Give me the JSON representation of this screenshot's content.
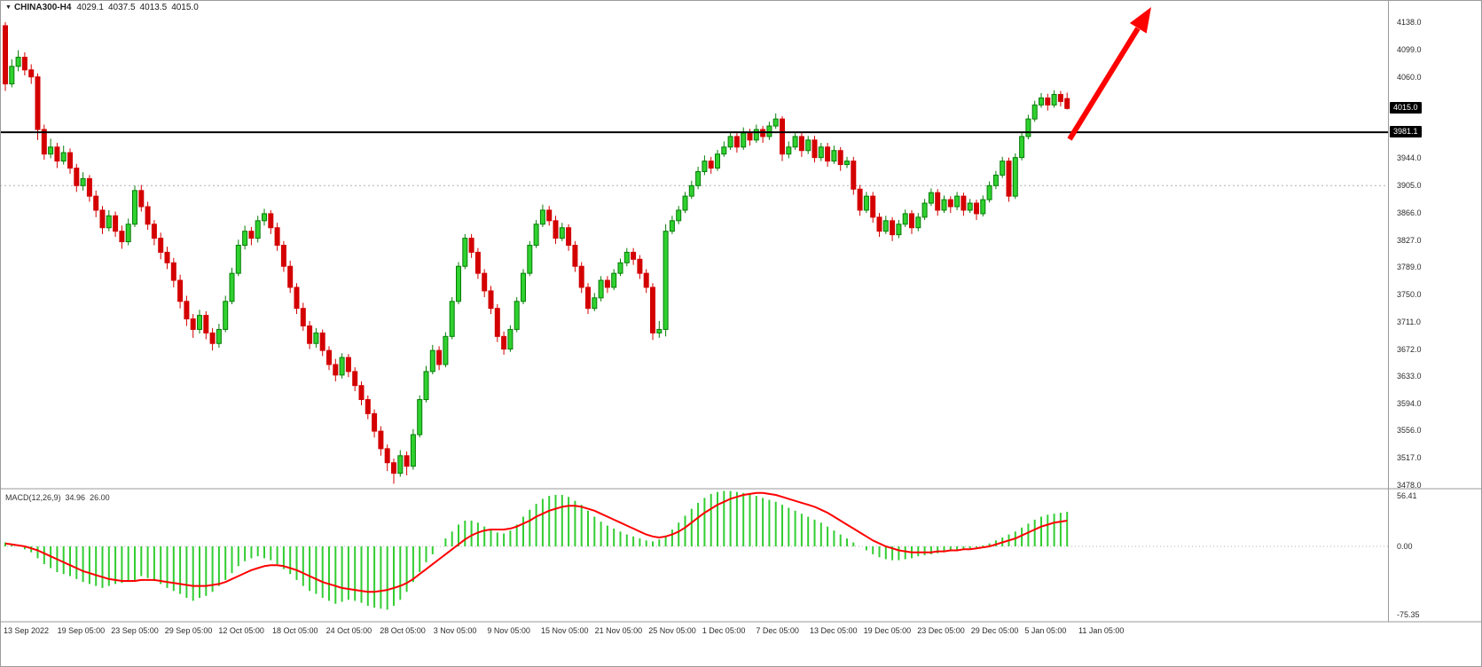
{
  "header": {
    "marker": "▼",
    "symbol": "CHINA300-H4",
    "open": "4029.1",
    "high": "4037.5",
    "low": "4013.5",
    "close": "4015.0"
  },
  "price_axis": {
    "current_tag": "4015.0",
    "line_tag": "3981.1"
  },
  "macd_panel": {
    "label": "MACD(12,26,9)",
    "macd_value": "34.96",
    "signal_value": "26.00",
    "axis": [
      {
        "t": "56.41",
        "v": 56.41
      },
      {
        "t": "0.00",
        "v": 0
      },
      {
        "t": "-75.35",
        "v": -75.35
      }
    ]
  },
  "colors": {
    "bull": "#067d06",
    "bull_fill": "#2fd12f",
    "bear": "#d40000",
    "macd_hist": "#32cd32",
    "macd_signal": "#ff0000",
    "level_line": "#000000",
    "dotted": "#b0b0b0",
    "separator": "#9a9a9a",
    "arrow": "#ff0000",
    "tag_bg": "#000000",
    "tag_fg": "#ffffff"
  },
  "chart_data": {
    "type": "candlestick",
    "title": "CHINA300-H4",
    "symbol": "CHINA300",
    "timeframe": "H4",
    "last_ohlc": {
      "open": 4029.1,
      "high": 4037.5,
      "low": 4013.5,
      "close": 4015.0
    },
    "ylim": [
      3478.0,
      4138.0
    ],
    "y_tick_labels": [
      "4138.0",
      "4099.0",
      "4060.0",
      "3944.0",
      "3905.0",
      "3866.0",
      "3827.0",
      "3789.0",
      "3750.0",
      "3711.0",
      "3672.0",
      "3633.0",
      "3594.0",
      "3556.0",
      "3517.0",
      "3478.0"
    ],
    "x_labels": [
      "13 Sep 2022",
      "19 Sep 05:00",
      "23 Sep 05:00",
      "29 Sep 05:00",
      "12 Oct 05:00",
      "18 Oct 05:00",
      "24 Oct 05:00",
      "28 Oct 05:00",
      "3 Nov 05:00",
      "9 Nov 05:00",
      "15 Nov 05:00",
      "21 Nov 05:00",
      "25 Nov 05:00",
      "1 Dec 05:00",
      "7 Dec 05:00",
      "13 Dec 05:00",
      "19 Dec 05:00",
      "23 Dec 05:00",
      "29 Dec 05:00",
      "5 Jan 05:00",
      "11 Jan 05:00"
    ],
    "levels": {
      "horizontal_black_line": 3981.1,
      "current_price": 4015.0,
      "dotted_level": 3905.0
    },
    "annotations": [
      {
        "type": "arrow",
        "direction": "up-right",
        "color": "#ff0000"
      }
    ],
    "candles": [
      [
        4133,
        4138,
        4040,
        4050
      ],
      [
        4050,
        4085,
        4045,
        4075
      ],
      [
        4075,
        4098,
        4068,
        4088
      ],
      [
        4088,
        4095,
        4062,
        4070
      ],
      [
        4070,
        4078,
        4050,
        4060
      ],
      [
        4060,
        4065,
        3970,
        3985
      ],
      [
        3985,
        3992,
        3942,
        3950
      ],
      [
        3950,
        3972,
        3944,
        3960
      ],
      [
        3960,
        3966,
        3930,
        3940
      ],
      [
        3940,
        3962,
        3935,
        3952
      ],
      [
        3952,
        3958,
        3922,
        3930
      ],
      [
        3930,
        3936,
        3896,
        3905
      ],
      [
        3905,
        3924,
        3898,
        3915
      ],
      [
        3915,
        3920,
        3882,
        3890
      ],
      [
        3890,
        3898,
        3860,
        3870
      ],
      [
        3870,
        3876,
        3836,
        3845
      ],
      [
        3845,
        3870,
        3840,
        3862
      ],
      [
        3862,
        3868,
        3832,
        3840
      ],
      [
        3840,
        3848,
        3815,
        3825
      ],
      [
        3825,
        3858,
        3820,
        3850
      ],
      [
        3850,
        3905,
        3846,
        3898
      ],
      [
        3898,
        3906,
        3868,
        3875
      ],
      [
        3875,
        3882,
        3842,
        3850
      ],
      [
        3850,
        3856,
        3820,
        3830
      ],
      [
        3830,
        3838,
        3800,
        3810
      ],
      [
        3810,
        3818,
        3786,
        3795
      ],
      [
        3795,
        3802,
        3760,
        3770
      ],
      [
        3770,
        3778,
        3730,
        3740
      ],
      [
        3740,
        3748,
        3705,
        3715
      ],
      [
        3715,
        3722,
        3688,
        3700
      ],
      [
        3700,
        3728,
        3694,
        3720
      ],
      [
        3720,
        3726,
        3686,
        3695
      ],
      [
        3695,
        3702,
        3670,
        3680
      ],
      [
        3680,
        3708,
        3674,
        3700
      ],
      [
        3700,
        3748,
        3696,
        3740
      ],
      [
        3740,
        3788,
        3736,
        3780
      ],
      [
        3780,
        3828,
        3776,
        3820
      ],
      [
        3820,
        3848,
        3814,
        3840
      ],
      [
        3840,
        3846,
        3820,
        3830
      ],
      [
        3830,
        3862,
        3824,
        3855
      ],
      [
        3855,
        3872,
        3848,
        3865
      ],
      [
        3865,
        3870,
        3836,
        3845
      ],
      [
        3845,
        3852,
        3812,
        3820
      ],
      [
        3820,
        3826,
        3782,
        3790
      ],
      [
        3790,
        3798,
        3752,
        3760
      ],
      [
        3760,
        3766,
        3722,
        3730
      ],
      [
        3730,
        3738,
        3698,
        3705
      ],
      [
        3705,
        3712,
        3672,
        3680
      ],
      [
        3680,
        3702,
        3674,
        3695
      ],
      [
        3695,
        3700,
        3662,
        3670
      ],
      [
        3670,
        3676,
        3642,
        3650
      ],
      [
        3650,
        3658,
        3626,
        3635
      ],
      [
        3635,
        3666,
        3630,
        3660
      ],
      [
        3660,
        3665,
        3632,
        3640
      ],
      [
        3640,
        3646,
        3612,
        3620
      ],
      [
        3620,
        3626,
        3592,
        3600
      ],
      [
        3600,
        3606,
        3572,
        3580
      ],
      [
        3580,
        3586,
        3546,
        3555
      ],
      [
        3555,
        3562,
        3520,
        3530
      ],
      [
        3530,
        3536,
        3498,
        3510
      ],
      [
        3510,
        3516,
        3480,
        3495
      ],
      [
        3495,
        3528,
        3490,
        3520
      ],
      [
        3520,
        3526,
        3492,
        3505
      ],
      [
        3505,
        3558,
        3500,
        3550
      ],
      [
        3550,
        3606,
        3546,
        3600
      ],
      [
        3600,
        3648,
        3596,
        3640
      ],
      [
        3640,
        3678,
        3636,
        3670
      ],
      [
        3670,
        3676,
        3642,
        3650
      ],
      [
        3650,
        3696,
        3646,
        3690
      ],
      [
        3690,
        3746,
        3686,
        3740
      ],
      [
        3740,
        3796,
        3736,
        3790
      ],
      [
        3790,
        3836,
        3786,
        3830
      ],
      [
        3830,
        3836,
        3802,
        3810
      ],
      [
        3810,
        3816,
        3772,
        3780
      ],
      [
        3780,
        3786,
        3746,
        3755
      ],
      [
        3755,
        3762,
        3722,
        3730
      ],
      [
        3730,
        3736,
        3682,
        3690
      ],
      [
        3690,
        3697,
        3664,
        3672
      ],
      [
        3672,
        3706,
        3668,
        3700
      ],
      [
        3700,
        3746,
        3696,
        3740
      ],
      [
        3740,
        3786,
        3736,
        3780
      ],
      [
        3780,
        3826,
        3776,
        3820
      ],
      [
        3820,
        3856,
        3816,
        3850
      ],
      [
        3850,
        3878,
        3846,
        3870
      ],
      [
        3870,
        3876,
        3848,
        3855
      ],
      [
        3855,
        3862,
        3822,
        3830
      ],
      [
        3830,
        3852,
        3826,
        3845
      ],
      [
        3845,
        3850,
        3812,
        3820
      ],
      [
        3820,
        3826,
        3782,
        3790
      ],
      [
        3790,
        3796,
        3752,
        3760
      ],
      [
        3760,
        3766,
        3722,
        3730
      ],
      [
        3730,
        3752,
        3726,
        3745
      ],
      [
        3745,
        3776,
        3740,
        3770
      ],
      [
        3770,
        3776,
        3752,
        3760
      ],
      [
        3760,
        3786,
        3756,
        3780
      ],
      [
        3780,
        3801,
        3776,
        3795
      ],
      [
        3795,
        3816,
        3790,
        3810
      ],
      [
        3810,
        3816,
        3792,
        3800
      ],
      [
        3800,
        3806,
        3772,
        3780
      ],
      [
        3780,
        3786,
        3752,
        3760
      ],
      [
        3760,
        3766,
        3685,
        3695
      ],
      [
        3695,
        3712,
        3688,
        3700
      ],
      [
        3700,
        3850,
        3690,
        3840
      ],
      [
        3840,
        3862,
        3836,
        3855
      ],
      [
        3855,
        3876,
        3850,
        3870
      ],
      [
        3870,
        3896,
        3866,
        3890
      ],
      [
        3890,
        3912,
        3886,
        3905
      ],
      [
        3905,
        3932,
        3900,
        3925
      ],
      [
        3925,
        3948,
        3920,
        3940
      ],
      [
        3940,
        3946,
        3922,
        3930
      ],
      [
        3930,
        3956,
        3926,
        3950
      ],
      [
        3950,
        3968,
        3946,
        3960
      ],
      [
        3960,
        3982,
        3956,
        3975
      ],
      [
        3975,
        3981,
        3952,
        3960
      ],
      [
        3960,
        3988,
        3956,
        3980
      ],
      [
        3980,
        3986,
        3962,
        3970
      ],
      [
        3970,
        3992,
        3966,
        3985
      ],
      [
        3985,
        3990,
        3966,
        3975
      ],
      [
        3975,
        3996,
        3970,
        3990
      ],
      [
        3990,
        4008,
        3986,
        4000
      ],
      [
        4000,
        4004,
        3940,
        3950
      ],
      [
        3950,
        3968,
        3944,
        3960
      ],
      [
        3960,
        3982,
        3956,
        3975
      ],
      [
        3975,
        3980,
        3946,
        3955
      ],
      [
        3955,
        3976,
        3950,
        3970
      ],
      [
        3970,
        3976,
        3938,
        3945
      ],
      [
        3945,
        3966,
        3940,
        3960
      ],
      [
        3960,
        3966,
        3932,
        3940
      ],
      [
        3940,
        3962,
        3936,
        3955
      ],
      [
        3955,
        3960,
        3926,
        3935
      ],
      [
        3935,
        3946,
        3930,
        3940
      ],
      [
        3940,
        3946,
        3892,
        3900
      ],
      [
        3900,
        3906,
        3862,
        3870
      ],
      [
        3870,
        3896,
        3866,
        3890
      ],
      [
        3890,
        3896,
        3852,
        3860
      ],
      [
        3860,
        3866,
        3832,
        3840
      ],
      [
        3840,
        3862,
        3836,
        3855
      ],
      [
        3855,
        3860,
        3826,
        3835
      ],
      [
        3835,
        3856,
        3830,
        3850
      ],
      [
        3850,
        3871,
        3846,
        3865
      ],
      [
        3865,
        3870,
        3836,
        3845
      ],
      [
        3845,
        3866,
        3840,
        3860
      ],
      [
        3860,
        3886,
        3856,
        3880
      ],
      [
        3880,
        3901,
        3876,
        3895
      ],
      [
        3895,
        3900,
        3862,
        3870
      ],
      [
        3870,
        3891,
        3866,
        3885
      ],
      [
        3885,
        3890,
        3866,
        3875
      ],
      [
        3875,
        3896,
        3870,
        3890
      ],
      [
        3890,
        3895,
        3862,
        3870
      ],
      [
        3870,
        3886,
        3866,
        3880
      ],
      [
        3880,
        3885,
        3856,
        3865
      ],
      [
        3865,
        3891,
        3861,
        3885
      ],
      [
        3885,
        3911,
        3881,
        3905
      ],
      [
        3905,
        3926,
        3900,
        3920
      ],
      [
        3920,
        3946,
        3916,
        3940
      ],
      [
        3940,
        3945,
        3882,
        3890
      ],
      [
        3890,
        3951,
        3886,
        3945
      ],
      [
        3945,
        3981,
        3941,
        3975
      ],
      [
        3975,
        4006,
        3971,
        4000
      ],
      [
        4000,
        4026,
        3996,
        4020
      ],
      [
        4020,
        4037,
        4016,
        4030
      ],
      [
        4030,
        4036,
        4012,
        4020
      ],
      [
        4020,
        4041,
        4016,
        4035
      ],
      [
        4035,
        4040,
        4018,
        4025
      ],
      [
        4029.1,
        4037.5,
        4013.5,
        4015
      ]
    ],
    "indicator": {
      "name": "MACD",
      "params": [
        12,
        26,
        9
      ],
      "macd_value": 34.96,
      "signal_value": 26.0,
      "range": [
        -75.35,
        56.41
      ],
      "histogram": [
        4,
        2,
        0,
        -3,
        -6,
        -12,
        -18,
        -22,
        -26,
        -28,
        -30,
        -33,
        -36,
        -38,
        -40,
        -42,
        -40,
        -38,
        -37,
        -36,
        -34,
        -30,
        -32,
        -35,
        -38,
        -42,
        -45,
        -48,
        -52,
        -55,
        -52,
        -50,
        -46,
        -40,
        -34,
        -27,
        -20,
        -15,
        -12,
        -10,
        -12,
        -14,
        -18,
        -23,
        -28,
        -34,
        -40,
        -45,
        -48,
        -52,
        -55,
        -58,
        -56,
        -54,
        -55,
        -57,
        -60,
        -62,
        -63,
        -64,
        -60,
        -54,
        -46,
        -36,
        -26,
        -16,
        -8,
        0,
        8,
        15,
        22,
        26,
        26,
        24,
        20,
        17,
        14,
        13,
        16,
        22,
        30,
        37,
        43,
        48,
        51,
        52,
        52,
        50,
        46,
        42,
        36,
        30,
        25,
        21,
        18,
        15,
        12,
        10,
        8,
        6,
        5,
        7,
        11,
        17,
        24,
        31,
        38,
        44,
        49,
        53,
        55,
        56,
        56,
        55,
        54,
        53,
        51,
        49,
        47,
        45,
        42,
        39,
        36,
        33,
        30,
        27,
        24,
        20,
        16,
        12,
        8,
        4,
        0,
        -4,
        -8,
        -11,
        -13,
        -14,
        -14,
        -13,
        -12,
        -10,
        -9,
        -8,
        -7,
        -6,
        -5,
        -4,
        -3,
        -2,
        -1,
        1,
        3,
        6,
        9,
        12,
        15,
        19,
        23,
        27,
        30,
        32,
        33,
        34,
        34.96
      ],
      "signal": [
        3,
        2,
        1,
        0,
        -2,
        -4,
        -7,
        -10,
        -13,
        -16,
        -19,
        -22,
        -25,
        -27,
        -29,
        -31,
        -33,
        -34,
        -35,
        -35,
        -35,
        -34,
        -34,
        -34,
        -35,
        -36,
        -37,
        -38,
        -39,
        -40,
        -40,
        -40,
        -39,
        -38,
        -36,
        -33,
        -30,
        -27,
        -24,
        -22,
        -20,
        -19,
        -19,
        -20,
        -22,
        -24,
        -27,
        -30,
        -33,
        -36,
        -38,
        -40,
        -42,
        -43,
        -44,
        -45,
        -46,
        -46,
        -45,
        -44,
        -42,
        -40,
        -37,
        -33,
        -28,
        -23,
        -18,
        -13,
        -8,
        -3,
        2,
        7,
        11,
        14,
        16,
        17,
        17,
        17,
        18,
        20,
        23,
        26,
        30,
        33,
        36,
        38,
        40,
        41,
        41,
        40,
        38,
        36,
        33,
        30,
        27,
        24,
        21,
        18,
        15,
        12,
        10,
        9,
        10,
        12,
        15,
        19,
        24,
        29,
        34,
        38,
        42,
        45,
        48,
        50,
        52,
        53,
        54,
        54,
        53,
        52,
        50,
        48,
        46,
        44,
        42,
        40,
        37,
        34,
        30,
        26,
        22,
        18,
        14,
        10,
        6,
        3,
        0,
        -2,
        -4,
        -5,
        -6,
        -6,
        -6,
        -6,
        -5,
        -5,
        -4,
        -4,
        -3,
        -3,
        -2,
        -1,
        0,
        2,
        4,
        6,
        8,
        11,
        14,
        17,
        20,
        22,
        24,
        25,
        26
      ]
    }
  }
}
